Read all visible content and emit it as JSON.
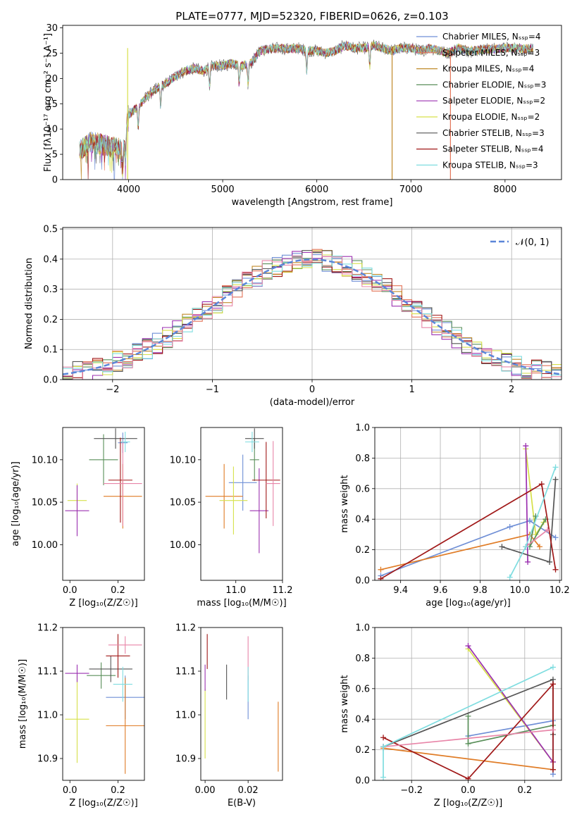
{
  "chart_data": [
    {
      "id": "spectrum",
      "type": "line",
      "title": "PLATE=0777, MJD=52320, FIBERID=0626, z=0.103",
      "xlabel": "wavelength [Angstrom, rest frame]",
      "ylabel": "Flux [fλ10⁻¹⁷ erg cm⁻² s⁻¹ A⁻¹]",
      "xlim": [
        3300,
        8600
      ],
      "ylim": [
        0,
        30.5
      ],
      "xticks": [
        4000,
        5000,
        6000,
        7000,
        8000
      ],
      "yticks": [
        0,
        5,
        10,
        15,
        20,
        25,
        30
      ],
      "legend_position": "upper-right",
      "continuum_x": [
        3480,
        3600,
        3700,
        3800,
        3880,
        3950,
        3990,
        4100,
        4200,
        4300,
        4400,
        4500,
        4600,
        4700,
        4800,
        4900,
        5000,
        5100,
        5200,
        5300,
        5400,
        5500,
        5600,
        5700,
        5800,
        5900,
        6000,
        6100,
        6200,
        6300,
        6400,
        6500,
        6600,
        6700,
        6800,
        6900,
        7000,
        7100,
        7200,
        7300,
        7400,
        7500,
        7600,
        7700,
        7800,
        7900,
        8000,
        8100,
        8200,
        8300
      ],
      "continuum_y": [
        5.5,
        7.5,
        7.0,
        6.5,
        6.2,
        6.0,
        12.5,
        14.5,
        16.5,
        18.0,
        19.0,
        20.5,
        21.5,
        22.0,
        21.5,
        22.5,
        22.5,
        23.0,
        22.5,
        23.0,
        25.5,
        25.8,
        26.0,
        25.8,
        26.0,
        25.5,
        25.5,
        25.0,
        25.5,
        26.5,
        26.0,
        26.0,
        26.5,
        26.0,
        25.5,
        26.0,
        26.0,
        25.5,
        26.0,
        25.5,
        25.0,
        26.0,
        25.5,
        25.5,
        25.8,
        25.8,
        26.0,
        26.0,
        25.8,
        26.0
      ],
      "series": [
        {
          "name": "Chabrier MILES, Nₛₛₚ=4",
          "color": "#6f8fd6"
        },
        {
          "name": "Salpeter MILES, Nₛₛₚ=3",
          "color": "#e37458"
        },
        {
          "name": "Kroupa MILES, Nₛₛₚ=4",
          "color": "#c08a2a"
        },
        {
          "name": "Chabrier ELODIE, Nₛₛₚ=3",
          "color": "#5a8f5a"
        },
        {
          "name": "Salpeter ELODIE, Nₛₛₚ=2",
          "color": "#9b30b0"
        },
        {
          "name": "Kroupa ELODIE, Nₛₛₚ=2",
          "color": "#d6e04a"
        },
        {
          "name": "Chabrier STELIB, Nₛₛₚ=3",
          "color": "#555555"
        },
        {
          "name": "Salpeter STELIB, Nₛₛₚ=4",
          "color": "#a01818"
        },
        {
          "name": "Kroupa STELIB, Nₛₛₚ=3",
          "color": "#7fdde0"
        }
      ]
    },
    {
      "id": "residuals",
      "type": "line",
      "xlabel": "(data-model)/error",
      "ylabel": "Normed distribution",
      "xlim": [
        -2.5,
        2.5
      ],
      "ylim": [
        0,
        0.505
      ],
      "xticks": [
        -2,
        -1,
        0,
        1,
        2
      ],
      "yticks": [
        0.0,
        0.1,
        0.2,
        0.3,
        0.4,
        0.5
      ],
      "grid": true,
      "legend_position": "upper-right",
      "reference_curve": "𝒩(0, 1)",
      "reference_color": "#5b86d8",
      "bin_width": 0.1
    },
    {
      "id": "age-vs-Z",
      "type": "scatter",
      "xlabel": "Z [log₁₀(Z/Z☉)]",
      "ylabel": "age  [log₁₀(age/yr)]",
      "xlim": [
        -0.03,
        0.31
      ],
      "ylim": [
        9.958,
        10.138
      ],
      "xticks": [
        0.0,
        0.2
      ],
      "yticks": [
        10.0,
        10.05,
        10.1
      ],
      "points": [
        {
          "x": 0.22,
          "y": 10.12,
          "xerr": 0.02,
          "yerr": 0.012,
          "color": "#6f8fd6"
        },
        {
          "x": 0.22,
          "y": 10.057,
          "xerr": 0.08,
          "yerr": 0.038,
          "color": "#e07c26"
        },
        {
          "x": 0.03,
          "y": 10.052,
          "xerr": 0.04,
          "yerr": 0.02,
          "color": "#d6e04a"
        },
        {
          "x": 0.14,
          "y": 10.1,
          "xerr": 0.06,
          "yerr": 0.03,
          "color": "#5a8f5a"
        },
        {
          "x": 0.03,
          "y": 10.04,
          "xerr": 0.05,
          "yerr": 0.03,
          "color": "#9b30b0"
        },
        {
          "x": 0.19,
          "y": 10.125,
          "xerr": 0.09,
          "yerr": 0.012,
          "color": "#555555"
        },
        {
          "x": 0.21,
          "y": 10.076,
          "xerr": 0.05,
          "yerr": 0.05,
          "color": "#a01818"
        },
        {
          "x": 0.22,
          "y": 10.072,
          "xerr": 0.08,
          "yerr": 0.05,
          "color": "#e885a8"
        },
        {
          "x": 0.23,
          "y": 10.121,
          "xerr": 0.02,
          "yerr": 0.012,
          "color": "#7fdde0"
        }
      ]
    },
    {
      "id": "age-vs-mass",
      "type": "scatter",
      "xlabel": "mass [log₁₀(M/M☉)]",
      "ylabel": "",
      "xlim": [
        10.85,
        11.2
      ],
      "ylim": [
        9.958,
        10.138
      ],
      "xticks": [
        11.0,
        11.2
      ],
      "yticks": [
        10.0,
        10.05,
        10.1
      ],
      "points": [
        {
          "x": 11.03,
          "y": 10.073,
          "xerr": 0.06,
          "yerr": 0.033,
          "color": "#6f8fd6"
        },
        {
          "x": 10.95,
          "y": 10.057,
          "xerr": 0.08,
          "yerr": 0.038,
          "color": "#e07c26"
        },
        {
          "x": 10.99,
          "y": 10.052,
          "xerr": 0.06,
          "yerr": 0.04,
          "color": "#d6e04a"
        },
        {
          "x": 11.08,
          "y": 10.1,
          "xerr": 0.02,
          "yerr": 0.025,
          "color": "#5a8f5a"
        },
        {
          "x": 11.1,
          "y": 10.04,
          "xerr": 0.04,
          "yerr": 0.05,
          "color": "#9b30b0"
        },
        {
          "x": 11.08,
          "y": 10.125,
          "xerr": 0.04,
          "yerr": 0.012,
          "color": "#555555"
        },
        {
          "x": 11.13,
          "y": 10.076,
          "xerr": 0.06,
          "yerr": 0.045,
          "color": "#a01818"
        },
        {
          "x": 11.16,
          "y": 10.072,
          "xerr": 0.03,
          "yerr": 0.05,
          "color": "#e885a8"
        },
        {
          "x": 11.07,
          "y": 10.121,
          "xerr": 0.03,
          "yerr": 0.012,
          "color": "#7fdde0"
        }
      ]
    },
    {
      "id": "weight-vs-age",
      "type": "line",
      "xlabel": "age  [log₁₀(age/yr)]",
      "ylabel": "mass weight",
      "xlim": [
        9.27,
        10.21
      ],
      "ylim": [
        0,
        1.0
      ],
      "xticks": [
        9.4,
        9.6,
        9.8,
        10.0,
        10.2
      ],
      "yticks": [
        0.0,
        0.2,
        0.4,
        0.6,
        0.8,
        1.0
      ],
      "grid": true,
      "series": [
        {
          "color": "#6f8fd6",
          "x": [
            9.3,
            9.95,
            10.05,
            10.18
          ],
          "y": [
            0.03,
            0.35,
            0.39,
            0.28
          ]
        },
        {
          "color": "#e07c26",
          "x": [
            9.3,
            10.05,
            10.1
          ],
          "y": [
            0.07,
            0.3,
            0.22
          ]
        },
        {
          "color": "#d6e04a",
          "x": [
            10.03,
            10.08,
            10.12
          ],
          "y": [
            0.86,
            0.3,
            0.38
          ]
        },
        {
          "color": "#5a8f5a",
          "x": [
            10.08,
            10.05,
            10.13
          ],
          "y": [
            0.42,
            0.22,
            0.4
          ]
        },
        {
          "color": "#9b30b0",
          "x": [
            10.03,
            10.04
          ],
          "y": [
            0.88,
            0.12
          ]
        },
        {
          "color": "#555555",
          "x": [
            9.91,
            10.15,
            10.18
          ],
          "y": [
            0.22,
            0.12,
            0.66
          ]
        },
        {
          "color": "#a01818",
          "x": [
            9.3,
            10.11,
            10.18
          ],
          "y": [
            0.01,
            0.63,
            0.07
          ]
        },
        {
          "color": "#e885a8",
          "x": [
            10.03,
            10.14
          ],
          "y": [
            0.22,
            0.33
          ]
        },
        {
          "color": "#7fdde0",
          "x": [
            9.95,
            10.03,
            10.18
          ],
          "y": [
            0.02,
            0.22,
            0.74
          ]
        }
      ]
    },
    {
      "id": "mass-vs-Z",
      "type": "scatter",
      "xlabel": "Z [log₁₀(Z/Z☉)]",
      "ylabel": "mass [log₁₀(M/M☉)]",
      "xlim": [
        -0.03,
        0.31
      ],
      "ylim": [
        10.85,
        11.2
      ],
      "xticks": [
        0.0,
        0.2
      ],
      "yticks": [
        10.9,
        11.0,
        11.1,
        11.2
      ],
      "points": [
        {
          "x": 0.23,
          "y": 11.04,
          "xerr": 0.08,
          "yerr": 0.05,
          "color": "#6f8fd6"
        },
        {
          "x": 0.23,
          "y": 10.975,
          "xerr": 0.08,
          "yerr": 0.11,
          "color": "#e07c26"
        },
        {
          "x": 0.03,
          "y": 10.99,
          "xerr": 0.05,
          "yerr": 0.1,
          "color": "#d6e04a"
        },
        {
          "x": 0.13,
          "y": 11.09,
          "xerr": 0.06,
          "yerr": 0.03,
          "color": "#5a8f5a"
        },
        {
          "x": 0.03,
          "y": 11.095,
          "xerr": 0.05,
          "yerr": 0.02,
          "color": "#9b30b0"
        },
        {
          "x": 0.17,
          "y": 11.105,
          "xerr": 0.09,
          "yerr": 0.03,
          "color": "#555555"
        },
        {
          "x": 0.2,
          "y": 11.135,
          "xerr": 0.05,
          "yerr": 0.05,
          "color": "#a01818"
        },
        {
          "x": 0.23,
          "y": 11.16,
          "xerr": 0.07,
          "yerr": 0.02,
          "color": "#e885a8"
        },
        {
          "x": 0.22,
          "y": 11.07,
          "xerr": 0.04,
          "yerr": 0.04,
          "color": "#7fdde0"
        }
      ]
    },
    {
      "id": "mass-vs-ebv",
      "type": "scatter",
      "xlabel": "E(B-V)",
      "ylabel": "",
      "xlim": [
        -0.002,
        0.036
      ],
      "ylim": [
        10.85,
        11.2
      ],
      "xticks": [
        0.0,
        0.02
      ],
      "yticks": [
        10.9,
        11.0,
        11.1,
        11.2
      ],
      "points": [
        {
          "x": 0.02,
          "y": 11.04,
          "xerr": 0,
          "yerr": 0.05,
          "color": "#6f8fd6"
        },
        {
          "x": 0.034,
          "y": 10.95,
          "xerr": 0,
          "yerr": 0.08,
          "color": "#e07c26"
        },
        {
          "x": 0.0,
          "y": 10.98,
          "xerr": 0,
          "yerr": 0.08,
          "color": "#d6e04a"
        },
        {
          "x": 0.0,
          "y": 11.085,
          "xerr": 0,
          "yerr": 0.03,
          "color": "#9b30b0"
        },
        {
          "x": 0.01,
          "y": 11.075,
          "xerr": 0,
          "yerr": 0.04,
          "color": "#555555"
        },
        {
          "x": 0.001,
          "y": 11.145,
          "xerr": 0,
          "yerr": 0.04,
          "color": "#a01818"
        },
        {
          "x": 0.02,
          "y": 11.13,
          "xerr": 0,
          "yerr": 0.05,
          "color": "#e885a8"
        },
        {
          "x": 0.02,
          "y": 11.07,
          "xerr": 0,
          "yerr": 0.04,
          "color": "#7fdde0"
        }
      ]
    },
    {
      "id": "weight-vs-Z",
      "type": "line",
      "xlabel": "Z [log₁₀(Z/Z☉)]",
      "ylabel": "mass weight",
      "xlim": [
        -0.33,
        0.33
      ],
      "ylim": [
        0,
        1.0
      ],
      "xticks": [
        -0.2,
        0.0,
        0.2
      ],
      "yticks": [
        0.0,
        0.2,
        0.4,
        0.6,
        0.8,
        1.0
      ],
      "grid": true,
      "series": [
        {
          "color": "#6f8fd6",
          "x": [
            0.0,
            0.3,
            0.3
          ],
          "y": [
            0.29,
            0.39,
            0.04
          ]
        },
        {
          "color": "#e07c26",
          "x": [
            -0.3,
            0.3
          ],
          "y": [
            0.21,
            0.07
          ]
        },
        {
          "color": "#d6e04a",
          "x": [
            0.0,
            0.3
          ],
          "y": [
            0.86,
            0.12
          ]
        },
        {
          "color": "#5a8f5a",
          "x": [
            0.0,
            0.0,
            0.3
          ],
          "y": [
            0.42,
            0.24,
            0.36
          ]
        },
        {
          "color": "#9b30b0",
          "x": [
            0.0,
            0.3
          ],
          "y": [
            0.88,
            0.12
          ]
        },
        {
          "color": "#555555",
          "x": [
            -0.3,
            0.3,
            0.3
          ],
          "y": [
            0.22,
            0.66,
            0.3
          ]
        },
        {
          "color": "#a01818",
          "x": [
            -0.3,
            0.0,
            0.3,
            0.3
          ],
          "y": [
            0.28,
            0.01,
            0.63,
            0.07
          ]
        },
        {
          "color": "#e885a8",
          "x": [
            -0.3,
            0.3
          ],
          "y": [
            0.22,
            0.33
          ]
        },
        {
          "color": "#7fdde0",
          "x": [
            -0.3,
            -0.3,
            0.3
          ],
          "y": [
            0.02,
            0.22,
            0.74
          ]
        }
      ]
    }
  ]
}
